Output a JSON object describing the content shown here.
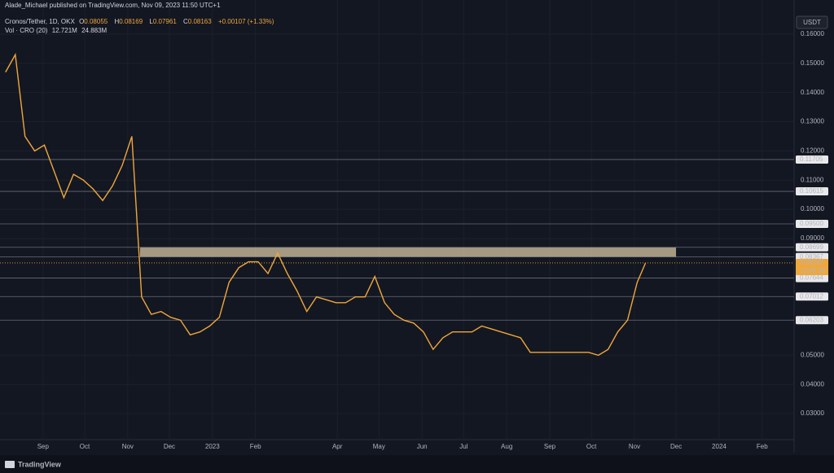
{
  "chart_data": {
    "type": "line",
    "publisher": "Alade_Michael published on TradingView.com, Nov 09, 2023 11:50 UTC+1",
    "symbol": "Cronos/Tether, 1D, OKX",
    "ohlc_labels": [
      "O",
      "H",
      "L",
      "C"
    ],
    "ohlc": [
      0.08055,
      0.08169,
      0.07961,
      0.08163
    ],
    "change": "+0.00107 (+1.33%)",
    "volume_label": "Vol · CRO (20)",
    "volume_values": [
      "12.721M",
      "24.883M"
    ],
    "currency": "USDT",
    "brand": "TradingView",
    "color": "#f0a73a",
    "x": [
      "2022-08-05",
      "2022-08-12",
      "2022-08-19",
      "2022-08-26",
      "2022-09-02",
      "2022-09-09",
      "2022-09-16",
      "2022-09-23",
      "2022-09-30",
      "2022-10-07",
      "2022-10-14",
      "2022-10-21",
      "2022-10-28",
      "2022-11-04",
      "2022-11-11",
      "2022-11-18",
      "2022-11-25",
      "2022-12-02",
      "2022-12-09",
      "2022-12-16",
      "2022-12-23",
      "2022-12-30",
      "2023-01-06",
      "2023-01-13",
      "2023-01-20",
      "2023-01-27",
      "2023-02-03",
      "2023-02-10",
      "2023-02-17",
      "2023-02-24",
      "2023-03-03",
      "2023-03-10",
      "2023-03-17",
      "2023-03-24",
      "2023-03-31",
      "2023-04-07",
      "2023-04-14",
      "2023-04-21",
      "2023-04-28",
      "2023-05-05",
      "2023-05-12",
      "2023-05-19",
      "2023-05-26",
      "2023-06-02",
      "2023-06-09",
      "2023-06-16",
      "2023-06-23",
      "2023-06-30",
      "2023-07-07",
      "2023-07-14",
      "2023-07-21",
      "2023-07-28",
      "2023-08-04",
      "2023-08-11",
      "2023-08-18",
      "2023-08-25",
      "2023-09-01",
      "2023-09-08",
      "2023-09-15",
      "2023-09-22",
      "2023-09-29",
      "2023-10-06",
      "2023-10-13",
      "2023-10-20",
      "2023-10-27",
      "2023-11-03",
      "2023-11-09"
    ],
    "values": [
      0.147,
      0.153,
      0.125,
      0.12,
      0.122,
      0.113,
      0.104,
      0.112,
      0.11,
      0.107,
      0.103,
      0.108,
      0.115,
      0.125,
      0.07,
      0.064,
      0.065,
      0.063,
      0.062,
      0.057,
      0.058,
      0.06,
      0.063,
      0.075,
      0.08,
      0.082,
      0.082,
      0.078,
      0.085,
      0.078,
      0.072,
      0.065,
      0.07,
      0.069,
      0.068,
      0.068,
      0.07,
      0.07,
      0.077,
      0.068,
      0.064,
      0.062,
      0.061,
      0.058,
      0.052,
      0.056,
      0.058,
      0.058,
      0.058,
      0.06,
      0.059,
      0.058,
      0.057,
      0.056,
      0.051,
      0.051,
      0.051,
      0.051,
      0.051,
      0.051,
      0.051,
      0.05,
      0.052,
      0.058,
      0.062,
      0.075,
      0.08163
    ],
    "xlim": [
      "2022-08-01",
      "2024-02-24"
    ],
    "xticks": [
      {
        "value": "2022-09-01",
        "label": "Sep"
      },
      {
        "value": "2022-10-01",
        "label": "Oct"
      },
      {
        "value": "2022-11-01",
        "label": "Nov"
      },
      {
        "value": "2022-12-01",
        "label": "Dec"
      },
      {
        "value": "2023-01-01",
        "label": "2023"
      },
      {
        "value": "2023-02-01",
        "label": "Feb"
      },
      {
        "value": "2023-04-01",
        "label": "Apr"
      },
      {
        "value": "2023-05-01",
        "label": "May"
      },
      {
        "value": "2023-06-01",
        "label": "Jun"
      },
      {
        "value": "2023-07-01",
        "label": "Jul"
      },
      {
        "value": "2023-08-01",
        "label": "Aug"
      },
      {
        "value": "2023-09-01",
        "label": "Sep"
      },
      {
        "value": "2023-10-01",
        "label": "Oct"
      },
      {
        "value": "2023-11-01",
        "label": "Nov"
      },
      {
        "value": "2023-12-01",
        "label": "Dec"
      },
      {
        "value": "2024-01-01",
        "label": "2024"
      },
      {
        "value": "2024-02-01",
        "label": "Feb"
      }
    ],
    "ylim": [
      0.0211,
      0.1717
    ],
    "yticks": [
      {
        "value": 0.16,
        "label": "0.16000"
      },
      {
        "value": 0.15,
        "label": "0.15000"
      },
      {
        "value": 0.14,
        "label": "0.14000"
      },
      {
        "value": 0.13,
        "label": "0.13000"
      },
      {
        "value": 0.12,
        "label": "0.12000"
      },
      {
        "value": 0.11,
        "label": "0.11000"
      },
      {
        "value": 0.1,
        "label": "0.10000"
      },
      {
        "value": 0.09,
        "label": "0.09000"
      },
      {
        "value": 0.05,
        "label": "0.05000"
      },
      {
        "value": 0.04,
        "label": "0.04000"
      },
      {
        "value": 0.03,
        "label": "0.03000"
      }
    ],
    "levels": [
      0.11705,
      0.10615,
      0.095,
      0.08699,
      0.08367,
      0.07644,
      0.07012,
      0.06203
    ],
    "level_labels": [
      "0.11705",
      "0.10615",
      "0.09500",
      "0.08699",
      "0.08367",
      "0.07644",
      "0.07012",
      "0.06203"
    ],
    "zone": [
      0.08367,
      0.08699
    ],
    "last_price": 0.08163,
    "countdown": "13:09:38"
  }
}
